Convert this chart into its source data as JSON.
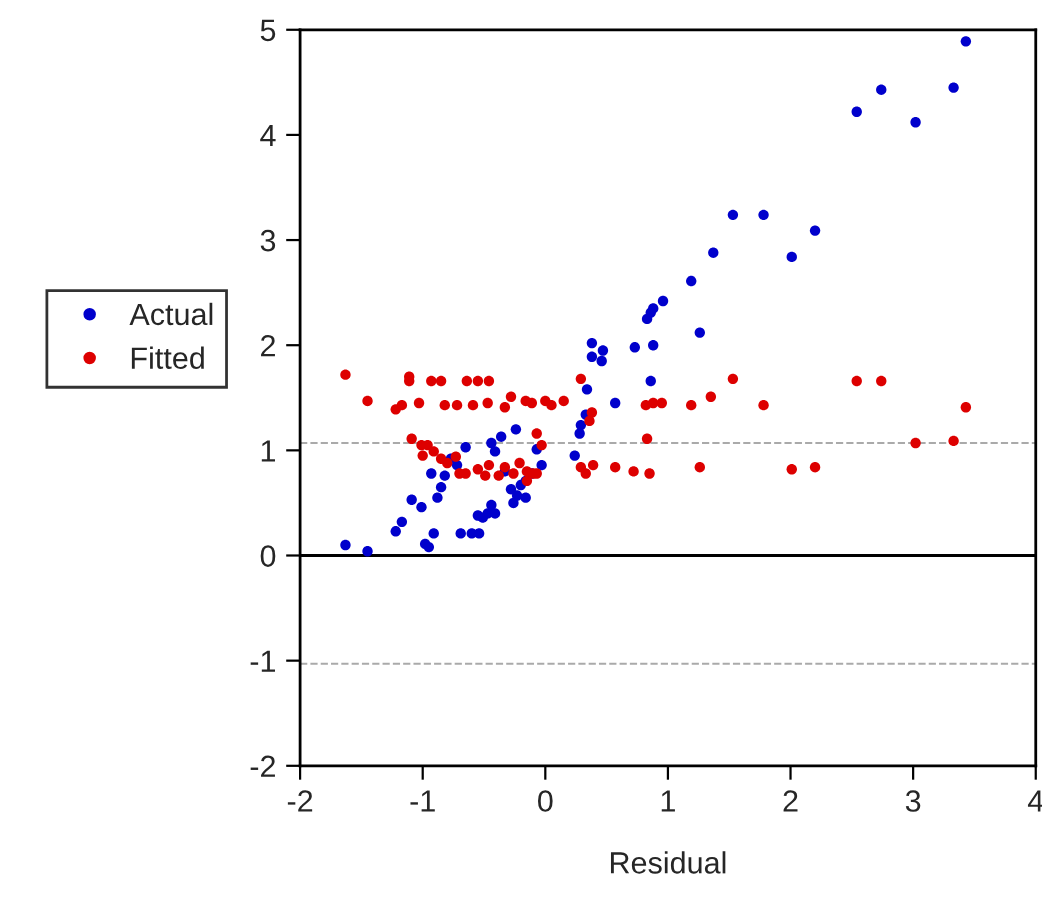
{
  "chart_data": {
    "type": "scatter",
    "xlabel": "Residual",
    "xlim": [
      -2,
      4
    ],
    "xticks": [
      -2,
      -1,
      0,
      1,
      2,
      3,
      4
    ],
    "ylim": [
      -2,
      5
    ],
    "yticks": [
      -2,
      -1,
      0,
      1,
      2,
      3,
      4,
      5
    ],
    "grid": false,
    "legend": "left",
    "marker": "circle",
    "ref_lines": [
      {
        "axis": "y",
        "value": 0,
        "color": "#000000",
        "line_style": "solid"
      },
      {
        "axis": "y",
        "value": 1.07,
        "color": "#aaaaaa",
        "line_style": "dashed"
      },
      {
        "axis": "y",
        "value": -1.03,
        "color": "#aaaaaa",
        "line_style": "dashed"
      }
    ],
    "series": [
      {
        "name": "Actual",
        "color": "#0000cc",
        "x": [
          -1.63,
          -1.45,
          -1.22,
          -1.17,
          -1.09,
          -1.01,
          -0.98,
          -0.95,
          -0.91,
          -0.93,
          -0.88,
          -0.85,
          -0.82,
          -0.77,
          -0.72,
          -0.65,
          -0.69,
          -0.6,
          -0.54,
          -0.55,
          -0.51,
          -0.47,
          -0.44,
          -0.41,
          -0.44,
          -0.36,
          -0.24,
          -0.41,
          -0.33,
          -0.28,
          -0.23,
          -0.2,
          -0.16,
          -0.11,
          -0.16,
          -0.26,
          -0.07,
          -0.03,
          0.24,
          0.28,
          0.29,
          0.33,
          0.34,
          0.38,
          0.38,
          0.46,
          0.47,
          0.57,
          0.73,
          0.83,
          0.86,
          0.88,
          0.96,
          0.86,
          0.88,
          1.19,
          1.26,
          1.37,
          1.53,
          1.78,
          2.01,
          2.2,
          2.54,
          2.74,
          3.02,
          3.33,
          3.43
        ],
        "values": [
          0.1,
          0.04,
          0.23,
          0.32,
          0.53,
          0.46,
          0.11,
          0.08,
          0.21,
          0.78,
          0.55,
          0.65,
          0.76,
          0.92,
          0.86,
          1.03,
          0.21,
          0.21,
          0.21,
          0.38,
          0.36,
          0.4,
          0.48,
          0.4,
          1.07,
          1.13,
          1.2,
          0.99,
          0.8,
          0.63,
          0.57,
          0.67,
          0.71,
          0.78,
          0.55,
          0.5,
          1.01,
          0.86,
          0.95,
          1.16,
          1.24,
          1.34,
          1.58,
          1.89,
          2.02,
          1.85,
          1.95,
          1.45,
          1.98,
          2.25,
          2.31,
          2.35,
          2.42,
          1.66,
          2.0,
          2.61,
          2.12,
          2.88,
          3.24,
          3.24,
          2.84,
          3.09,
          4.22,
          4.43,
          4.12,
          4.45,
          4.89
        ]
      },
      {
        "name": "Fitted",
        "color": "#dd0000",
        "x": [
          -1.63,
          -1.45,
          -1.22,
          -1.17,
          -1.11,
          -1.11,
          -1.03,
          -0.93,
          -0.85,
          -0.82,
          -0.72,
          -0.64,
          -0.55,
          -0.46,
          -0.59,
          -0.47,
          -0.33,
          -0.28,
          -0.16,
          -0.11,
          -1.09,
          -1.01,
          -1.0,
          -0.96,
          -0.91,
          -0.85,
          -0.8,
          -0.73,
          -0.7,
          -0.65,
          -0.55,
          -0.46,
          -0.49,
          -0.38,
          -0.33,
          -0.26,
          -0.21,
          -0.15,
          -0.1,
          -0.15,
          -0.07,
          -0.03,
          -0.07,
          0.05,
          0.0,
          0.29,
          0.15,
          0.36,
          0.38,
          0.29,
          0.33,
          0.39,
          0.57,
          0.72,
          0.85,
          0.83,
          0.82,
          0.88,
          0.95,
          1.19,
          1.26,
          1.35,
          1.53,
          1.78,
          2.01,
          2.2,
          2.54,
          2.74,
          3.02,
          3.33,
          3.43
        ],
        "values": [
          1.72,
          1.47,
          1.39,
          1.43,
          1.66,
          1.7,
          1.45,
          1.66,
          1.66,
          1.43,
          1.43,
          1.66,
          1.66,
          1.66,
          1.43,
          1.45,
          1.41,
          1.51,
          1.47,
          1.45,
          1.11,
          1.05,
          0.95,
          1.05,
          0.99,
          0.92,
          0.88,
          0.94,
          0.78,
          0.78,
          0.82,
          0.86,
          0.76,
          0.76,
          0.84,
          0.78,
          0.88,
          0.8,
          0.78,
          0.71,
          0.78,
          1.05,
          1.16,
          1.43,
          1.47,
          1.68,
          1.47,
          1.28,
          1.36,
          0.84,
          0.78,
          0.86,
          0.84,
          0.8,
          0.78,
          1.11,
          1.43,
          1.45,
          1.45,
          1.43,
          0.84,
          1.51,
          1.68,
          1.43,
          0.82,
          0.84,
          1.66,
          1.66,
          1.07,
          1.09,
          1.41
        ]
      }
    ]
  }
}
